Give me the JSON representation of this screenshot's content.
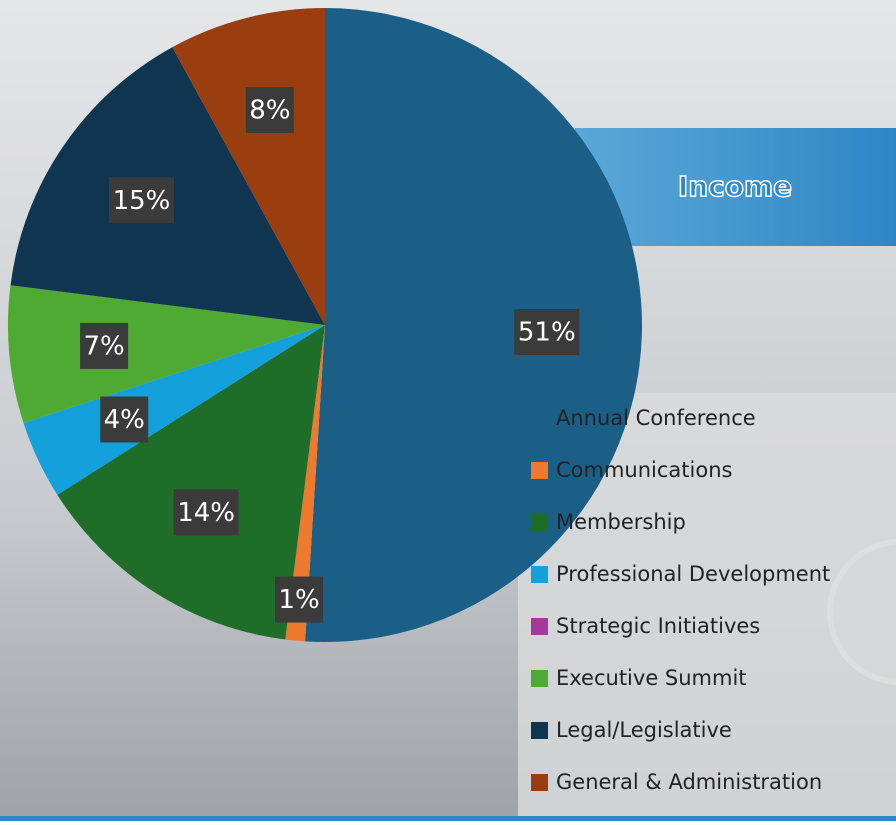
{
  "chart_data": {
    "type": "pie",
    "title": "Income",
    "categories": [
      "Annual Conference",
      "Communications",
      "Membership",
      "Professional Development",
      "Strategic Initiatives",
      "Executive Summit",
      "Legal/Legislative",
      "General & Administration"
    ],
    "values": [
      51,
      1,
      14,
      4,
      0,
      7,
      15,
      8
    ],
    "value_labels": [
      "51%",
      "1%",
      "14%",
      "4%",
      null,
      "7%",
      "15%",
      "8%"
    ],
    "colors": [
      "#1b5f86",
      "#ee7a30",
      "#1e6e2a",
      "#14a0db",
      "#a23a9c",
      "#4eaa32",
      "#0f3550",
      "#9a3e10"
    ]
  }
}
